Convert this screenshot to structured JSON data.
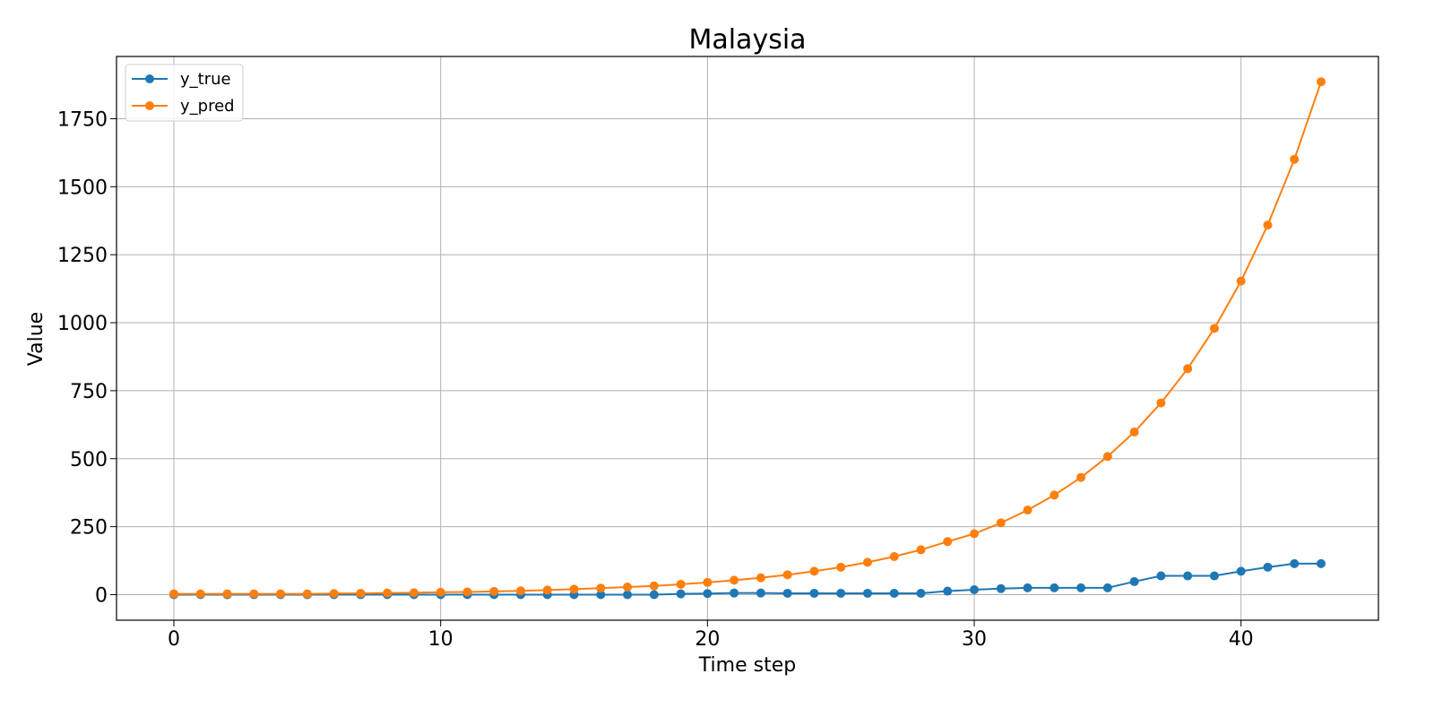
{
  "chart_data": {
    "type": "line",
    "title": "Malaysia",
    "xlabel": "Time step",
    "ylabel": "Value",
    "xlim": [
      -2.15,
      45.15
    ],
    "ylim": [
      -94,
      1979
    ],
    "xticks": [
      0,
      10,
      20,
      30,
      40
    ],
    "yticks": [
      0,
      250,
      500,
      750,
      1000,
      1250,
      1500,
      1750
    ],
    "grid": true,
    "legend_position": "top-left",
    "x": [
      0,
      1,
      2,
      3,
      4,
      5,
      6,
      7,
      8,
      9,
      10,
      11,
      12,
      13,
      14,
      15,
      16,
      17,
      18,
      19,
      20,
      21,
      22,
      23,
      24,
      25,
      26,
      27,
      28,
      29,
      30,
      31,
      32,
      33,
      34,
      35,
      36,
      37,
      38,
      39,
      40,
      41,
      42,
      43
    ],
    "series": [
      {
        "name": "y_true",
        "color": "#1f77b4",
        "values": [
          0,
          0,
          0,
          0,
          0,
          0,
          0,
          0,
          0,
          0,
          0,
          0,
          0,
          0,
          0,
          0,
          0,
          0,
          0,
          3,
          4,
          6,
          6,
          5,
          5,
          5,
          5,
          5,
          5,
          13,
          18,
          22,
          25,
          25,
          25,
          25,
          48,
          69,
          69,
          69,
          86,
          101,
          114,
          114
        ]
      },
      {
        "name": "y_pred",
        "color": "#ff7f0e",
        "values": [
          3,
          3,
          3,
          3,
          3,
          3,
          4,
          5,
          6,
          7,
          9,
          10,
          12,
          14,
          17,
          20,
          24,
          28,
          32,
          38,
          45,
          53,
          62,
          73,
          86,
          101,
          119,
          140,
          165,
          195,
          224,
          264,
          311,
          366,
          431,
          508,
          598,
          705,
          831,
          979,
          1153,
          1359,
          1601,
          1886
        ]
      }
    ]
  }
}
